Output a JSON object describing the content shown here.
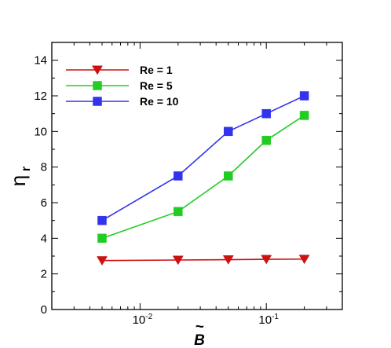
{
  "chart_data": {
    "type": "line",
    "xscale": "log",
    "xlim": [
      0.002,
      0.4
    ],
    "ylim": [
      0,
      15
    ],
    "xlabel": "B",
    "xlabel_accent": "~",
    "ylabel": "η",
    "ylabel_sub": "r",
    "yticks": [
      0,
      2,
      4,
      6,
      8,
      10,
      12,
      14
    ],
    "xticks": [
      {
        "value": 0.01,
        "base": "10",
        "exp": "-2"
      },
      {
        "value": 0.1,
        "base": "10",
        "exp": "-1"
      }
    ],
    "grid": false,
    "legend_position": "top-left",
    "x": [
      0.005,
      0.02,
      0.05,
      0.1,
      0.2
    ],
    "series": [
      {
        "name": "Re = 1",
        "color": "#cc1111",
        "marker": "triangle-down",
        "values": [
          2.75,
          2.78,
          2.8,
          2.82,
          2.83
        ]
      },
      {
        "name": "Re = 5",
        "color": "#22cc22",
        "marker": "square",
        "values": [
          4.0,
          5.5,
          7.5,
          9.5,
          10.9
        ]
      },
      {
        "name": "Re = 10",
        "color": "#3333ee",
        "marker": "square",
        "values": [
          5.0,
          7.5,
          10.0,
          11.0,
          12.0
        ]
      }
    ]
  }
}
